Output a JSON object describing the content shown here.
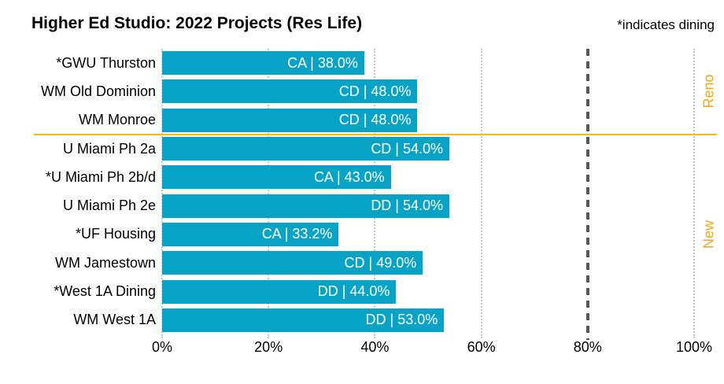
{
  "title": "Higher Ed Studio: 2022 Projects (Res Life)",
  "note": "*indicates dining",
  "colors": {
    "bar": "#06a3c6",
    "accent_orange": "#ffb81c",
    "section_label": "#f2a71b",
    "reference_line": "#595959",
    "gridline": "#c8c8c8",
    "bar_label_text": "#ffffff",
    "text": "#000000",
    "background": "#ffffff"
  },
  "chart_data": {
    "type": "bar",
    "orientation": "horizontal",
    "title": "Higher Ed Studio: 2022 Projects (Res Life)",
    "xlabel": "",
    "ylabel": "",
    "xlim": [
      0,
      100
    ],
    "grid": "dotted-vertical",
    "x_ticks": [
      {
        "label": "0%",
        "value": 0
      },
      {
        "label": "20%",
        "value": 20
      },
      {
        "label": "40%",
        "value": 40
      },
      {
        "label": "60%",
        "value": 60
      },
      {
        "label": "80%",
        "value": 80
      },
      {
        "label": "100%",
        "value": 100
      }
    ],
    "rows": [
      {
        "label": "*GWU Thurston",
        "phase": "CA",
        "value": 38.0,
        "bar_label": "CA | 38.0%"
      },
      {
        "label": "WM Old Dominion",
        "phase": "CD",
        "value": 48.0,
        "bar_label": "CD | 48.0%"
      },
      {
        "label": "WM Monroe",
        "phase": "CD",
        "value": 48.0,
        "bar_label": "CD | 48.0%"
      },
      {
        "label": "U Miami Ph 2a",
        "phase": "CD",
        "value": 54.0,
        "bar_label": "CD | 54.0%"
      },
      {
        "label": "*U Miami Ph 2b/d",
        "phase": "CA",
        "value": 43.0,
        "bar_label": "CA | 43.0%"
      },
      {
        "label": "U Miami Ph 2e",
        "phase": "DD",
        "value": 54.0,
        "bar_label": "DD | 54.0%"
      },
      {
        "label": "*UF Housing",
        "phase": "CA",
        "value": 33.2,
        "bar_label": "CA | 33.2%"
      },
      {
        "label": "WM Jamestown",
        "phase": "CD",
        "value": 49.0,
        "bar_label": "CD | 49.0%"
      },
      {
        "label": "*West 1A Dining",
        "phase": "DD",
        "value": 44.0,
        "bar_label": "DD | 44.0%"
      },
      {
        "label": "WM West 1A",
        "phase": "DD",
        "value": 53.0,
        "bar_label": "DD | 53.0%"
      }
    ],
    "sections": [
      {
        "label": "Reno",
        "start_row": 0,
        "end_row": 2
      },
      {
        "label": "New",
        "start_row": 3,
        "end_row": 9
      }
    ],
    "reference_line": {
      "value": 80,
      "style": "dashed"
    }
  }
}
